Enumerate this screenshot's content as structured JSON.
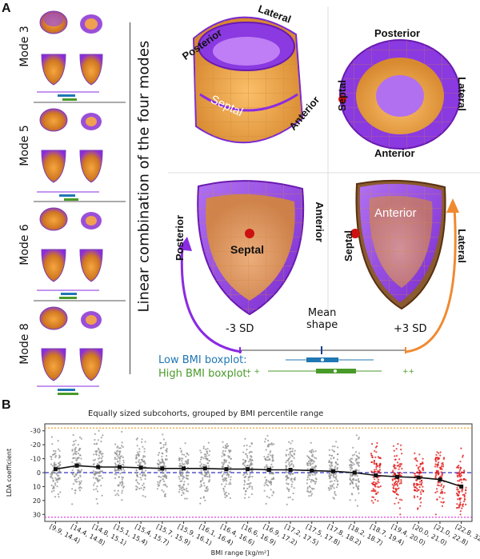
{
  "panel_a": {
    "letter": "A",
    "modes": [
      "Mode 3",
      "Mode 5",
      "Mode 6",
      "Mode 8"
    ],
    "vertical_label": "Linear combination of the four modes",
    "top_left_labels": {
      "posterior": "Posterior",
      "lateral": "Lateral",
      "septal": "Septal",
      "anterior": "Anterior"
    },
    "top_right_labels": {
      "posterior": "Posterior",
      "septal": "Septal",
      "lateral": "Lateral",
      "anterior": "Anterior"
    },
    "bottom_left_labels": {
      "posterior": "Posterior",
      "septal": "Septal",
      "anterior": "Anterior"
    },
    "bottom_right_labels": {
      "anterior": "Anterior",
      "septal": "Septal",
      "lateral": "Lateral"
    },
    "sd_minus": "-3 SD",
    "mean_shape": "Mean\nshape",
    "sd_plus": "+3 SD",
    "legend_low": "Low BMI boxplot:",
    "legend_high": "High BMI boxplot:",
    "colors": {
      "purple": "#8a2be2",
      "orange": "#f08a30",
      "low_bmi": "#1f77b4",
      "high_bmi": "#4a9a2a"
    }
  },
  "panel_b": {
    "letter": "B",
    "chart_data": {
      "type": "scatter",
      "title": "Equally sized subcohorts, grouped by BMI percentile range",
      "xlabel": "BMI range [kg/m²]",
      "ylabel": "LDA coefficient",
      "ylim": [
        35,
        -35
      ],
      "yticks": [
        -30,
        -20,
        -10,
        0,
        10,
        20,
        30
      ],
      "reference_lines": [
        {
          "y": -32,
          "color": "#f0a030",
          "style": "dotted"
        },
        {
          "y": 0,
          "color": "#3030c0",
          "style": "dashed"
        },
        {
          "y": 32,
          "color": "#e040e0",
          "style": "dotted"
        }
      ],
      "categories": [
        "[9.9, 14.4)",
        "[14.4, 14.8)",
        "[14.8, 15.1)",
        "[15.1, 15.4)",
        "[15.4, 15.7)",
        "[15.7, 15.9)",
        "[15.9, 16.1)",
        "[16.1, 16.4)",
        "[16.4, 16.6)",
        "[16.6, 16.9)",
        "[16.9, 17.2)",
        "[17.2, 17.5)",
        "[17.5, 17.8)",
        "[17.8, 18.2)",
        "[18.2, 18.7)",
        "[18.7, 19.4)",
        "[19.4, 20.0)",
        "[20.0, 21.0)",
        "[21.0, 22.8)",
        "[22.8, 32.7]"
      ],
      "median_line": [
        -2.5,
        -5,
        -4,
        -4,
        -3.5,
        -3,
        -3,
        -3,
        -2.5,
        -2.5,
        -2,
        -2,
        -1.5,
        -1,
        0,
        2,
        3,
        3.5,
        5,
        10
      ],
      "point_colors": [
        "gray",
        "gray",
        "gray",
        "gray",
        "gray",
        "gray",
        "gray",
        "gray",
        "gray",
        "gray",
        "gray",
        "gray",
        "gray",
        "gray",
        "gray",
        "red",
        "red",
        "red",
        "red",
        "red"
      ]
    }
  }
}
